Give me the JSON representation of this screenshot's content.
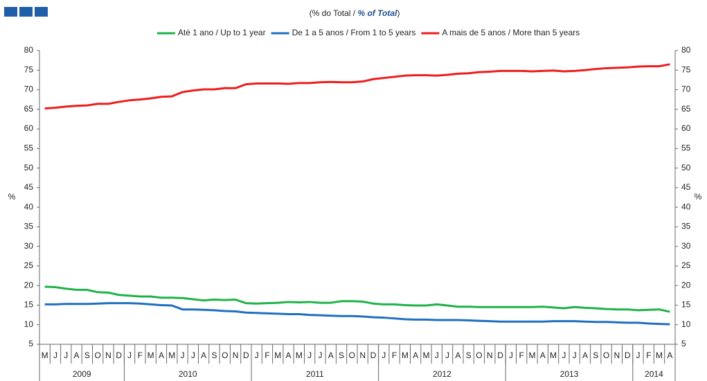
{
  "chart_data": {
    "type": "line",
    "title_parts": [
      "(% do Total / ",
      "% of Total",
      ")"
    ],
    "ylabel": "%",
    "y2label": "%",
    "categories": [
      "M",
      "J",
      "J",
      "A",
      "S",
      "O",
      "N",
      "D",
      "J",
      "F",
      "M",
      "A",
      "M",
      "J",
      "J",
      "A",
      "S",
      "O",
      "N",
      "D",
      "J",
      "F",
      "M",
      "A",
      "M",
      "J",
      "J",
      "A",
      "S",
      "O",
      "N",
      "D",
      "J",
      "F",
      "M",
      "A",
      "M",
      "J",
      "J",
      "A",
      "S",
      "O",
      "N",
      "D",
      "J",
      "F",
      "M",
      "A",
      "M",
      "J",
      "J",
      "A",
      "S",
      "O",
      "N",
      "D",
      "J",
      "F",
      "M",
      "A"
    ],
    "x_groups": [
      "2009",
      "2010",
      "2011",
      "2012",
      "2013",
      "2014"
    ],
    "ylim": [
      5,
      80
    ],
    "yticks": [
      5,
      10,
      15,
      20,
      25,
      30,
      35,
      40,
      45,
      50,
      55,
      60,
      65,
      70,
      75,
      80
    ],
    "y2lim": [
      5,
      80
    ],
    "y2ticks": [
      5,
      10,
      15,
      20,
      25,
      30,
      35,
      40,
      45,
      50,
      55,
      60,
      65,
      70,
      75,
      80
    ],
    "legend": "top",
    "grid": false,
    "series": [
      {
        "name": "Até 1 ano / Up to 1 year",
        "color": "#1fb24a",
        "values": [
          19.7,
          19.6,
          19.2,
          18.9,
          18.9,
          18.3,
          18.2,
          17.6,
          17.4,
          17.2,
          17.2,
          16.9,
          16.9,
          16.8,
          16.5,
          16.2,
          16.4,
          16.3,
          16.4,
          15.5,
          15.4,
          15.5,
          15.6,
          15.8,
          15.7,
          15.8,
          15.6,
          15.6,
          16.0,
          16.0,
          15.9,
          15.4,
          15.2,
          15.2,
          15.0,
          14.9,
          14.9,
          15.2,
          14.9,
          14.6,
          14.6,
          14.5,
          14.5,
          14.5,
          14.5,
          14.5,
          14.5,
          14.6,
          14.4,
          14.2,
          14.5,
          14.3,
          14.2,
          14.0,
          13.9,
          13.9,
          13.7,
          13.8,
          13.9,
          13.3
        ]
      },
      {
        "name": "De 1 a 5 anos / From 1 to 5 years",
        "color": "#1f6fc0",
        "values": [
          15.2,
          15.2,
          15.3,
          15.3,
          15.3,
          15.4,
          15.5,
          15.5,
          15.5,
          15.4,
          15.2,
          15.0,
          14.9,
          13.9,
          13.9,
          13.8,
          13.7,
          13.5,
          13.4,
          13.1,
          13.0,
          12.9,
          12.8,
          12.7,
          12.7,
          12.5,
          12.4,
          12.3,
          12.2,
          12.2,
          12.1,
          11.9,
          11.8,
          11.6,
          11.4,
          11.3,
          11.3,
          11.2,
          11.2,
          11.2,
          11.1,
          11.0,
          10.9,
          10.8,
          10.8,
          10.8,
          10.8,
          10.8,
          10.9,
          10.9,
          10.9,
          10.8,
          10.7,
          10.7,
          10.6,
          10.5,
          10.5,
          10.3,
          10.2,
          10.1
        ]
      },
      {
        "name": "A mais de 5 anos / More than 5 years",
        "color": "#ee1c1c",
        "values": [
          65.2,
          65.4,
          65.7,
          65.9,
          66.0,
          66.4,
          66.4,
          66.9,
          67.3,
          67.5,
          67.8,
          68.2,
          68.3,
          69.4,
          69.8,
          70.1,
          70.1,
          70.4,
          70.4,
          71.4,
          71.6,
          71.6,
          71.6,
          71.5,
          71.7,
          71.7,
          71.9,
          72.0,
          71.9,
          71.9,
          72.1,
          72.7,
          73.0,
          73.3,
          73.6,
          73.7,
          73.7,
          73.6,
          73.8,
          74.1,
          74.2,
          74.5,
          74.6,
          74.8,
          74.8,
          74.8,
          74.7,
          74.8,
          74.9,
          74.7,
          74.8,
          75.0,
          75.3,
          75.5,
          75.6,
          75.7,
          75.9,
          76.0,
          76.0,
          76.5
        ]
      }
    ]
  }
}
